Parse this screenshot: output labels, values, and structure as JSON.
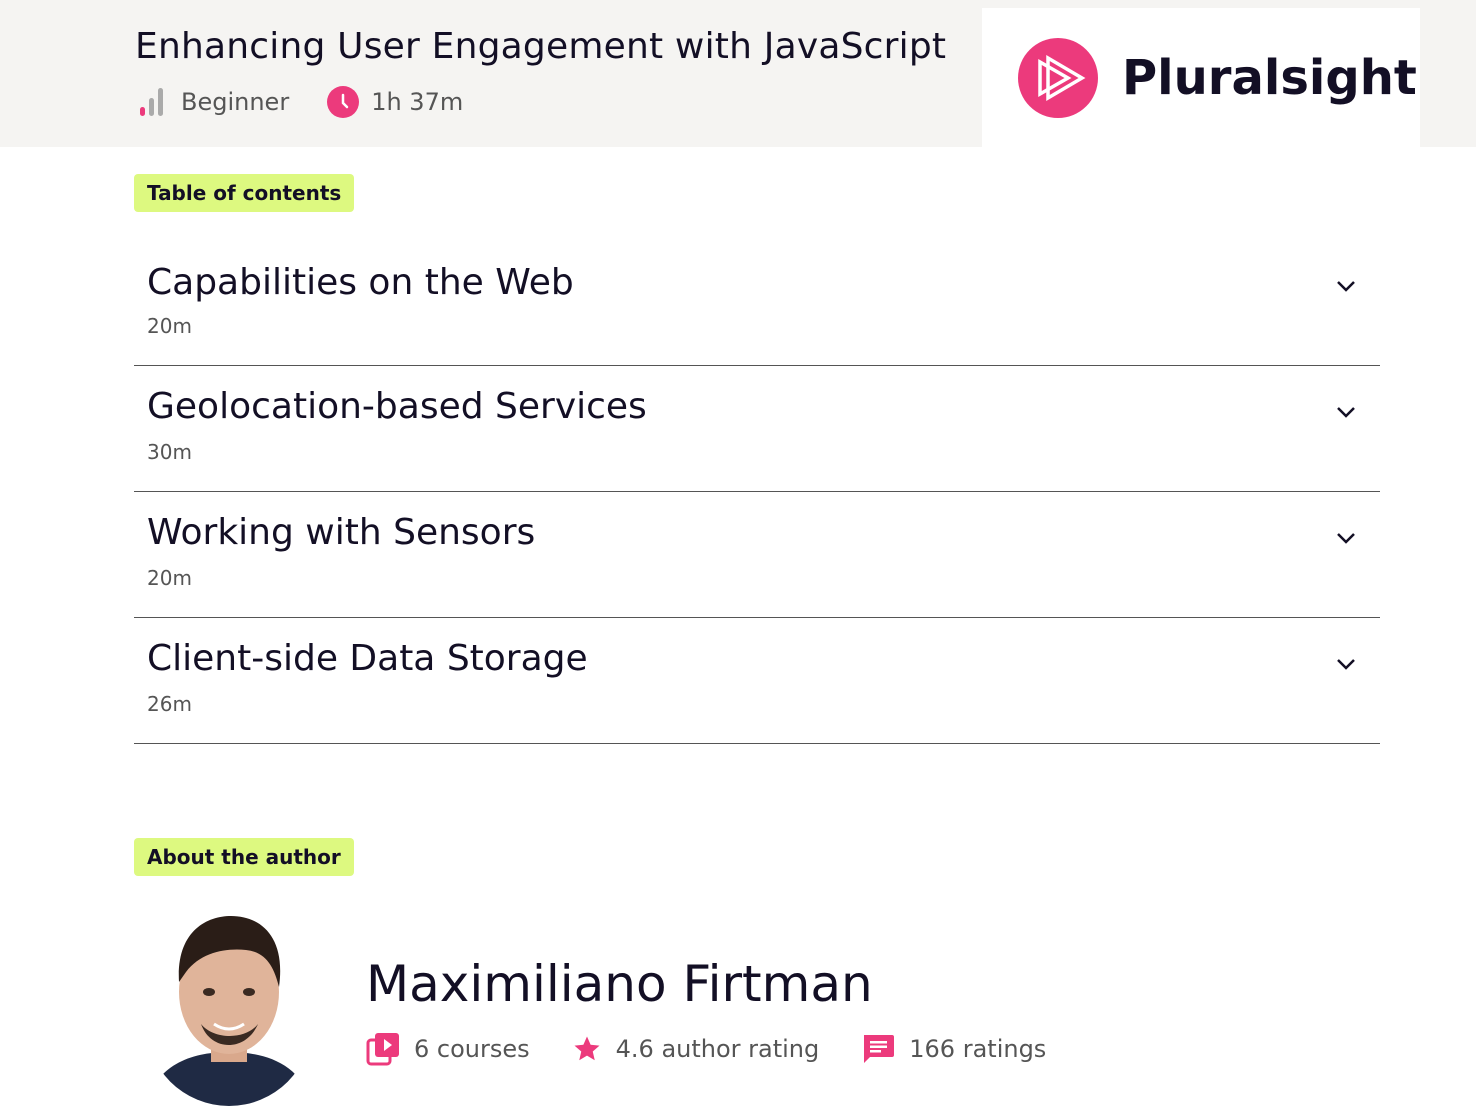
{
  "course": {
    "title": "Enhancing User Engagement with JavaScript",
    "level": "Beginner",
    "duration": "1h 37m",
    "level_icon": "signal-bars-icon",
    "duration_icon": "clock-icon"
  },
  "brand": {
    "name": "Pluralsight",
    "accent": "#ec3a7c",
    "highlight": "#ddf980"
  },
  "toc": {
    "label": "Table of contents",
    "modules": [
      {
        "title": "Capabilities on the Web",
        "duration": "20m"
      },
      {
        "title": "Geolocation-based Services",
        "duration": "30m"
      },
      {
        "title": "Working with Sensors",
        "duration": "20m"
      },
      {
        "title": "Client-side Data Storage",
        "duration": "26m"
      }
    ]
  },
  "author": {
    "label": "About the author",
    "name": "Maximiliano Firtman",
    "courses": "6 courses",
    "rating": "4.6 author rating",
    "ratings_count": "166 ratings"
  }
}
